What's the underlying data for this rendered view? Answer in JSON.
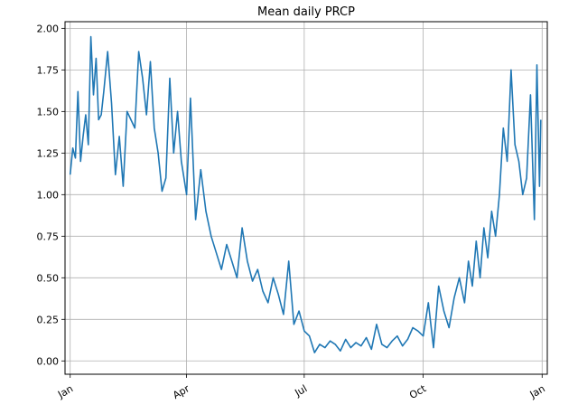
{
  "chart_data": {
    "type": "line",
    "title": "Mean daily PRCP",
    "xlabel": "",
    "ylabel": "",
    "x_ticks": [
      {
        "label": "Jan",
        "value": "2014-01-01"
      },
      {
        "label": "Apr",
        "value": "2014-04-01"
      },
      {
        "label": "Jul",
        "value": "2014-07-01"
      },
      {
        "label": "Oct",
        "value": "2014-10-01"
      },
      {
        "label": "Jan",
        "value": "2015-01-01"
      }
    ],
    "y_ticks": [
      "0.00",
      "0.25",
      "0.50",
      "0.75",
      "1.00",
      "1.25",
      "1.50",
      "1.75",
      "2.00"
    ],
    "xlim": [
      "2013-12-28",
      "2015-01-05"
    ],
    "ylim": [
      -0.08,
      2.04
    ],
    "grid": true,
    "line_color": "#1f77b4",
    "series": [
      {
        "x": [
          "2014-01-01",
          "2014-01-03",
          "2014-01-05",
          "2014-01-07",
          "2014-01-09",
          "2014-01-11",
          "2014-01-13",
          "2014-01-15",
          "2014-01-17",
          "2014-01-19",
          "2014-01-21",
          "2014-01-23",
          "2014-01-25",
          "2014-01-27",
          "2014-01-30",
          "2014-02-02",
          "2014-02-05",
          "2014-02-08",
          "2014-02-11",
          "2014-02-14",
          "2014-02-17",
          "2014-02-20",
          "2014-02-23",
          "2014-02-26",
          "2014-03-01",
          "2014-03-04",
          "2014-03-07",
          "2014-03-10",
          "2014-03-13",
          "2014-03-16",
          "2014-03-19",
          "2014-03-22",
          "2014-03-25",
          "2014-03-28",
          "2014-04-01",
          "2014-04-04",
          "2014-04-08",
          "2014-04-12",
          "2014-04-16",
          "2014-04-20",
          "2014-04-24",
          "2014-04-28",
          "2014-05-02",
          "2014-05-06",
          "2014-05-10",
          "2014-05-14",
          "2014-05-18",
          "2014-05-22",
          "2014-05-26",
          "2014-05-30",
          "2014-06-03",
          "2014-06-07",
          "2014-06-11",
          "2014-06-15",
          "2014-06-19",
          "2014-06-23",
          "2014-06-27",
          "2014-07-01",
          "2014-07-05",
          "2014-07-09",
          "2014-07-13",
          "2014-07-17",
          "2014-07-21",
          "2014-07-25",
          "2014-07-29",
          "2014-08-02",
          "2014-08-06",
          "2014-08-10",
          "2014-08-14",
          "2014-08-18",
          "2014-08-22",
          "2014-08-26",
          "2014-08-30",
          "2014-09-03",
          "2014-09-07",
          "2014-09-11",
          "2014-09-15",
          "2014-09-19",
          "2014-09-23",
          "2014-09-27",
          "2014-10-01",
          "2014-10-05",
          "2014-10-09",
          "2014-10-13",
          "2014-10-17",
          "2014-10-21",
          "2014-10-25",
          "2014-10-29",
          "2014-11-02",
          "2014-11-05",
          "2014-11-08",
          "2014-11-11",
          "2014-11-14",
          "2014-11-17",
          "2014-11-20",
          "2014-11-23",
          "2014-11-26",
          "2014-11-29",
          "2014-12-02",
          "2014-12-05",
          "2014-12-08",
          "2014-12-11",
          "2014-12-14",
          "2014-12-17",
          "2014-12-20",
          "2014-12-23",
          "2014-12-26",
          "2014-12-28",
          "2014-12-30",
          "2014-12-31"
        ],
        "y": [
          1.12,
          1.28,
          1.22,
          1.62,
          1.2,
          1.35,
          1.48,
          1.3,
          1.95,
          1.6,
          1.82,
          1.45,
          1.48,
          1.62,
          1.86,
          1.55,
          1.12,
          1.35,
          1.05,
          1.5,
          1.45,
          1.4,
          1.86,
          1.7,
          1.48,
          1.8,
          1.4,
          1.25,
          1.02,
          1.1,
          1.7,
          1.25,
          1.5,
          1.2,
          1.0,
          1.58,
          0.85,
          1.15,
          0.9,
          0.75,
          0.65,
          0.55,
          0.7,
          0.6,
          0.5,
          0.8,
          0.6,
          0.48,
          0.55,
          0.42,
          0.35,
          0.5,
          0.4,
          0.28,
          0.6,
          0.22,
          0.3,
          0.18,
          0.15,
          0.05,
          0.1,
          0.08,
          0.12,
          0.1,
          0.06,
          0.13,
          0.08,
          0.11,
          0.09,
          0.14,
          0.07,
          0.22,
          0.1,
          0.08,
          0.12,
          0.15,
          0.09,
          0.13,
          0.2,
          0.18,
          0.15,
          0.35,
          0.08,
          0.45,
          0.3,
          0.2,
          0.38,
          0.5,
          0.35,
          0.6,
          0.45,
          0.72,
          0.5,
          0.8,
          0.62,
          0.9,
          0.75,
          1.0,
          1.4,
          1.2,
          1.75,
          1.3,
          1.2,
          1.0,
          1.1,
          1.6,
          0.85,
          1.78,
          1.05,
          1.45
        ]
      }
    ]
  }
}
